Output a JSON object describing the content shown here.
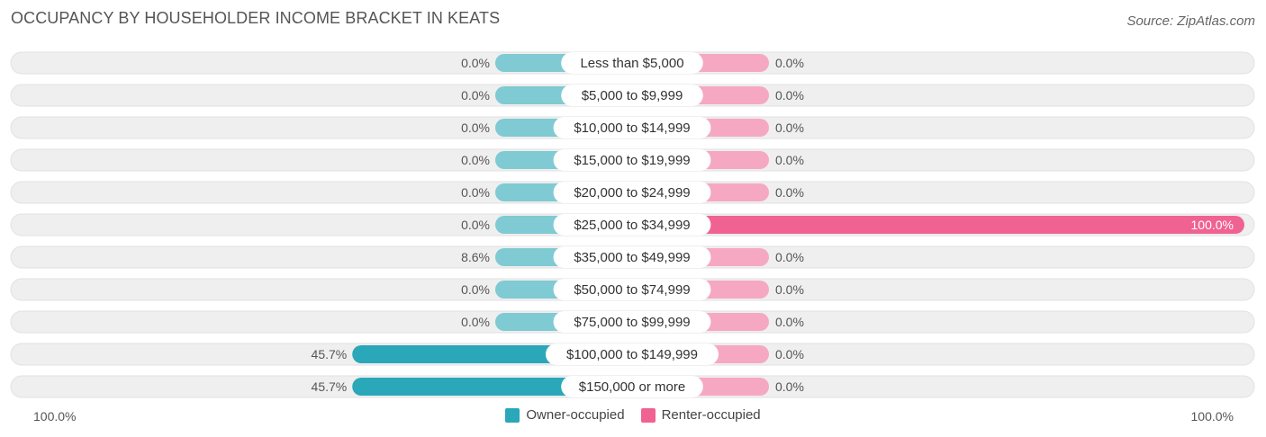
{
  "header": {
    "title": "OCCUPANCY BY HOUSEHOLDER INCOME BRACKET IN KEATS",
    "source": "Source: ZipAtlas.com"
  },
  "colors": {
    "owner_strong": "#2aa7b8",
    "owner_light": "#7fcad3",
    "renter_strong": "#f06292",
    "renter_light": "#f6a8c3",
    "track": "#efefef"
  },
  "axis": {
    "left_label": "100.0%",
    "right_label": "100.0%"
  },
  "chart_data": {
    "type": "bar",
    "orientation": "horizontal-diverging",
    "title": "OCCUPANCY BY HOUSEHOLDER INCOME BRACKET IN KEATS",
    "categories": [
      "Less than $5,000",
      "$5,000 to $9,999",
      "$10,000 to $14,999",
      "$15,000 to $19,999",
      "$20,000 to $24,999",
      "$25,000 to $34,999",
      "$35,000 to $49,999",
      "$50,000 to $74,999",
      "$75,000 to $99,999",
      "$100,000 to $149,999",
      "$150,000 or more"
    ],
    "series": [
      {
        "name": "Owner-occupied",
        "values": [
          0.0,
          0.0,
          0.0,
          0.0,
          0.0,
          0.0,
          8.6,
          0.0,
          0.0,
          45.7,
          45.7
        ],
        "labels": [
          "0.0%",
          "0.0%",
          "0.0%",
          "0.0%",
          "0.0%",
          "0.0%",
          "8.6%",
          "0.0%",
          "0.0%",
          "45.7%",
          "45.7%"
        ]
      },
      {
        "name": "Renter-occupied",
        "values": [
          0.0,
          0.0,
          0.0,
          0.0,
          0.0,
          100.0,
          0.0,
          0.0,
          0.0,
          0.0,
          0.0
        ],
        "labels": [
          "0.0%",
          "0.0%",
          "0.0%",
          "0.0%",
          "0.0%",
          "100.0%",
          "0.0%",
          "0.0%",
          "0.0%",
          "0.0%",
          "0.0%"
        ]
      }
    ],
    "xlim": [
      -100,
      100
    ],
    "legend": {
      "position": "bottom-center"
    }
  }
}
